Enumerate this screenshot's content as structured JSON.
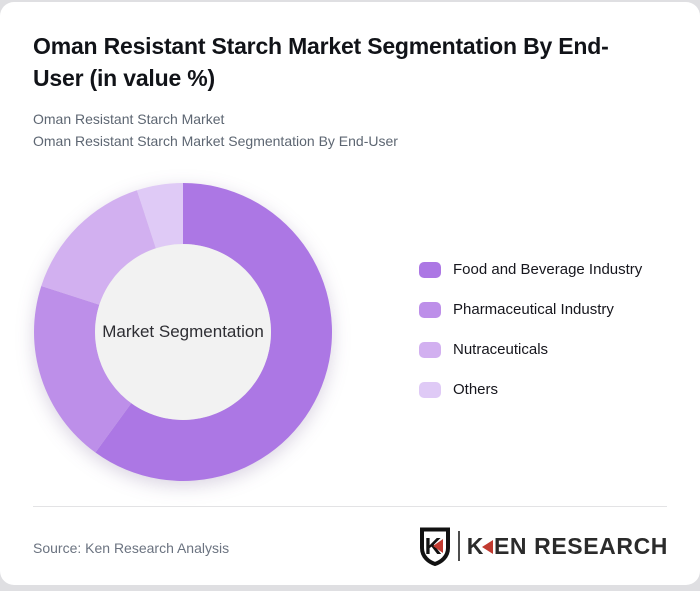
{
  "page": {
    "background_color": "#dfdfe2",
    "card_background": "#ffffff"
  },
  "header": {
    "title": "Oman Resistant Starch Market Segmentation By End-User (in value %)",
    "subtitle_line1": "Oman Resistant Starch Market",
    "subtitle_line2": "Oman Resistant Starch Market Segmentation By End-User"
  },
  "chart_data": {
    "type": "pie",
    "subtype": "donut",
    "title": "Oman Resistant Starch Market Segmentation By End-User (in value %)",
    "center_label": "Market Segmentation",
    "unit": "value %",
    "categories": [
      "Food and Beverage Industry",
      "Pharmaceutical Industry",
      "Nutraceuticals",
      "Others"
    ],
    "values": [
      60,
      20,
      15,
      5
    ],
    "colors": [
      "#ac77e4",
      "#bd8fe9",
      "#d2b0f0",
      "#dfcaf6"
    ],
    "start_angle_deg": 0,
    "direction": "clockwise",
    "inner_radius_ratio": 0.59,
    "hole_color": "#f2f2f2",
    "legend_position": "right",
    "data_labels": false
  },
  "footer": {
    "source": "Source: Ken Research Analysis",
    "logo": {
      "shield_letter": "K",
      "wordmark_k": "K",
      "wordmark_rest": "EN RESEARCH",
      "accent_color": "#c13a30",
      "icons": [
        "ken-research-shield-icon",
        "red-left-triangle-icon"
      ]
    }
  }
}
